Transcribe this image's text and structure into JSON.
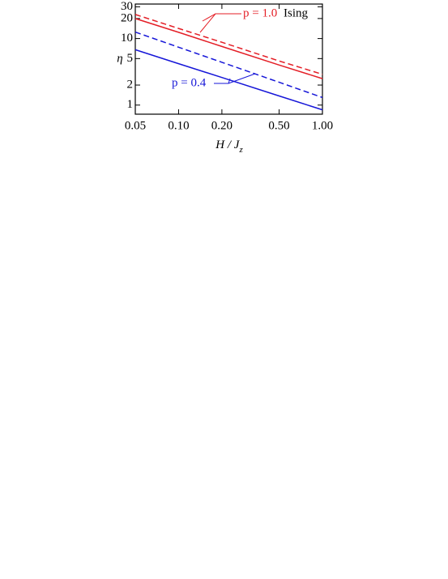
{
  "chart_data": {
    "type": "line",
    "log_x": true,
    "log_y": true,
    "xlabel": "H / J",
    "xlabel_subscript": "z",
    "ylabel": "η",
    "xlim": [
      0.05,
      1.0
    ],
    "ylim": [
      0.73,
      33
    ],
    "xticks": [
      {
        "value": 0.05,
        "label": "0.05"
      },
      {
        "value": 0.1,
        "label": "0.10"
      },
      {
        "value": 0.2,
        "label": "0.20"
      },
      {
        "value": 0.5,
        "label": "0.50"
      },
      {
        "value": 1.0,
        "label": "1.00"
      }
    ],
    "yticks": [
      1,
      2,
      5,
      10,
      20,
      30
    ],
    "x": [
      0.05,
      0.1,
      0.2,
      0.5,
      1.0
    ],
    "series": [
      {
        "name": "p = 1.0",
        "color": "#e41e26",
        "dashed": false,
        "values": [
          20,
          12.4,
          7.6,
          4.0,
          2.5
        ]
      },
      {
        "name": "p = 1.0",
        "color": "#e41e26",
        "dashed": true,
        "values": [
          23,
          14.2,
          8.8,
          4.6,
          2.9
        ]
      },
      {
        "name": "p = 0.4",
        "color": "#1616d8",
        "dashed": true,
        "values": [
          12.5,
          7.4,
          4.4,
          2.2,
          1.3
        ]
      },
      {
        "name": "p = 0.4",
        "color": "#1616d8",
        "dashed": false,
        "values": [
          6.8,
          4.2,
          2.6,
          1.37,
          0.85
        ]
      }
    ],
    "annotations": {
      "p_high": "p = 1.0",
      "ising": "Ising",
      "p_low": "p = 0.4"
    }
  }
}
